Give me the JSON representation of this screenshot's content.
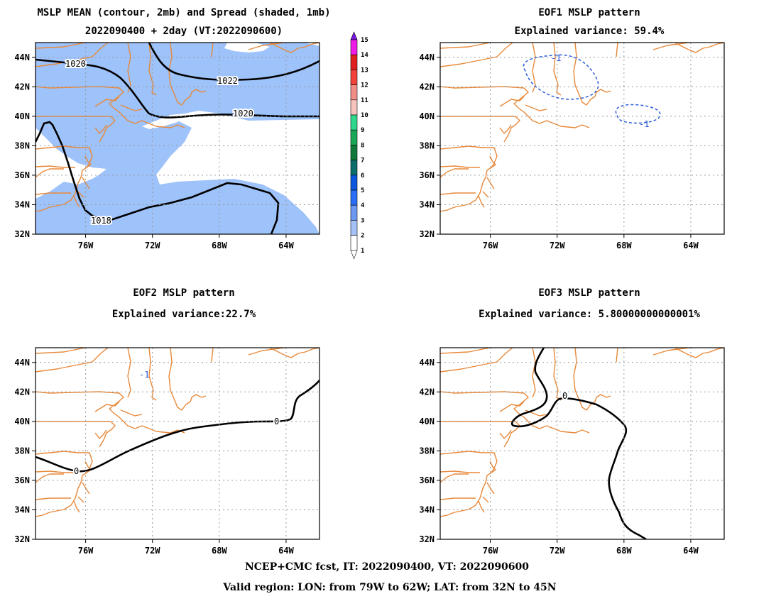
{
  "chart_data": [
    {
      "type": "heatmap",
      "title": "MSLP MEAN (contour, 2mb) and Spread (shaded, 1mb)",
      "subtitle": "2022090400 + 2day (VT:2022090600)",
      "x_ticks": [
        "76W",
        "72W",
        "68W",
        "64W"
      ],
      "y_ticks": [
        "44N",
        "42N",
        "40N",
        "38N",
        "36N",
        "34N",
        "32N"
      ],
      "xlim": [
        -79,
        -62
      ],
      "ylim": [
        32,
        45
      ],
      "contour_labels": [
        "1020",
        "1022",
        "1020",
        "1018"
      ],
      "colorbar": {
        "ticks": [
          "15",
          "14",
          "13",
          "12",
          "11",
          "10",
          "9",
          "8",
          "7",
          "6",
          "5",
          "4",
          "3",
          "2",
          "1"
        ],
        "colors": [
          "#7b16e0",
          "#ef1ae8",
          "#e0201d",
          "#f2423a",
          "#f28e86",
          "#f7c3bd",
          "#2ed78c",
          "#1ba657",
          "#117a3a",
          "#0c6e6a",
          "#0b57dd",
          "#2a6ef5",
          "#6a98f2",
          "#a3c1f7",
          "#ffffff"
        ]
      }
    },
    {
      "type": "heatmap",
      "title": "EOF1 MSLP pattern",
      "subtitle": "Explained variance: 59.4%",
      "x_ticks": [
        "76W",
        "72W",
        "68W",
        "64W"
      ],
      "y_ticks": [
        "44N",
        "42N",
        "40N",
        "38N",
        "36N",
        "34N",
        "32N"
      ],
      "xlim": [
        -79,
        -62
      ],
      "ylim": [
        32,
        45
      ],
      "contour_labels": [
        "-1",
        "-1"
      ]
    },
    {
      "type": "heatmap",
      "title": "EOF2 MSLP pattern",
      "subtitle": "Explained variance:22.7%",
      "x_ticks": [
        "76W",
        "72W",
        "68W",
        "64W"
      ],
      "y_ticks": [
        "44N",
        "42N",
        "40N",
        "38N",
        "36N",
        "34N",
        "32N"
      ],
      "xlim": [
        -79,
        -62
      ],
      "ylim": [
        32,
        45
      ],
      "contour_labels": [
        "-1",
        "0",
        "0"
      ]
    },
    {
      "type": "heatmap",
      "title": "EOF3 MSLP pattern",
      "subtitle": "Explained variance: 5.80000000000001%",
      "x_ticks": [
        "76W",
        "72W",
        "68W",
        "64W"
      ],
      "y_ticks": [
        "44N",
        "42N",
        "40N",
        "38N",
        "36N",
        "34N",
        "32N"
      ],
      "xlim": [
        -79,
        -62
      ],
      "ylim": [
        32,
        45
      ],
      "contour_labels": [
        "0"
      ]
    }
  ],
  "footer": {
    "line1": "NCEP+CMC fcst, IT: 2022090400, VT: 2022090600",
    "line2": "Valid region: LON: from 79W to 62W; LAT: from 32N to 45N"
  },
  "colors": {
    "coast": "#e8893a",
    "spread_shade": "#9ec2fa",
    "negative_contour": "#2a5bd7"
  }
}
